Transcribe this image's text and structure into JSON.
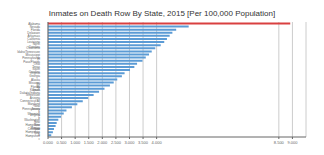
{
  "chart_data": {
    "type": "bar",
    "orientation": "horizontal",
    "title": "Inmates on Death Row By State, 2015 [Per 100,000 Population]",
    "categories": [
      "Alabama",
      "Nevada",
      "Florida",
      "Delaware",
      "Arkansas",
      "California",
      "Louisiana",
      "North Carolina",
      "Oklahoma",
      "Idaho/Tennessee",
      "Mississippi",
      "Pennsylvania",
      "El Paso/Florida",
      "Ohio",
      "Texas",
      "South Carolina",
      "Virginia",
      "Georgia",
      "Alaska",
      "Missouri",
      "By Florida",
      "By Kansas",
      "South Dakota/Indiana",
      "Tennessee",
      "Arizona",
      "Connecticut/All",
      "Maryland",
      "New Jersey",
      "Pennsylvania b",
      "Wyoming",
      "Virginia b",
      "Washington",
      "New Hampshire",
      "New Mexico",
      "Colorado",
      "New Hampshire b",
      "New Hampshire c"
    ],
    "values": [
      8.92,
      5.18,
      4.72,
      4.58,
      4.48,
      4.38,
      4.28,
      4.15,
      3.95,
      3.82,
      3.72,
      3.6,
      3.48,
      3.28,
      3.18,
      3.02,
      2.82,
      2.72,
      2.55,
      2.42,
      2.28,
      2.08,
      1.88,
      1.68,
      1.48,
      1.28,
      1.08,
      0.88,
      0.68,
      0.58,
      0.48,
      0.38,
      0.32,
      0.28,
      0.22,
      0.18,
      0.12
    ],
    "colors": [
      "#d94040",
      "#5b9bd5",
      "#5b9bd5",
      "#5b9bd5",
      "#5b9bd5",
      "#5b9bd5",
      "#5b9bd5",
      "#5b9bd5",
      "#5b9bd5",
      "#5b9bd5",
      "#5b9bd5",
      "#5b9bd5",
      "#5b9bd5",
      "#5b9bd5",
      "#5b9bd5",
      "#5b9bd5",
      "#5b9bd5",
      "#5b9bd5",
      "#5b9bd5",
      "#5b9bd5",
      "#5b9bd5",
      "#5b9bd5",
      "#5b9bd5",
      "#5b9bd5",
      "#5b9bd5",
      "#5b9bd5",
      "#5b9bd5",
      "#5b9bd5",
      "#5b9bd5",
      "#5b9bd5",
      "#5b9bd5",
      "#5b9bd5",
      "#5b9bd5",
      "#5b9bd5",
      "#5b9bd5",
      "#5b9bd5",
      "#5b9bd5"
    ],
    "xlim": [
      0,
      9.5
    ],
    "xticks": [
      {
        "value": 0.0,
        "label": "0.000"
      },
      {
        "value": 0.5,
        "label": "0.500"
      },
      {
        "value": 1.0,
        "label": "1.000"
      },
      {
        "value": 1.5,
        "label": "1.500"
      },
      {
        "value": 2.0,
        "label": "2.000"
      },
      {
        "value": 2.5,
        "label": "2.500"
      },
      {
        "value": 3.0,
        "label": "3.000"
      },
      {
        "value": 3.5,
        "label": "3.500"
      },
      {
        "value": 4.0,
        "label": "4.000"
      },
      {
        "value": 8.5,
        "label": "8.500"
      },
      {
        "value": 9.0,
        "label": "9.000"
      }
    ],
    "grid": true
  }
}
